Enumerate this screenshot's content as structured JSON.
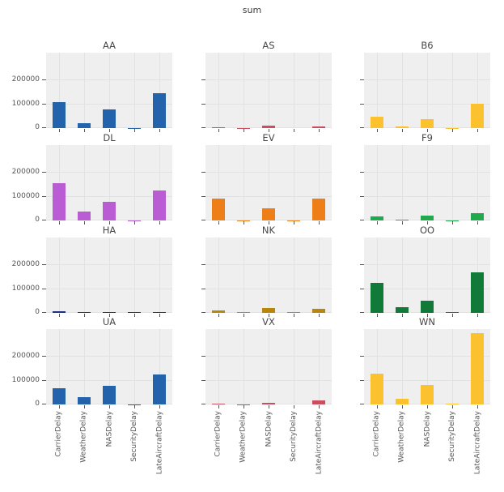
{
  "figure": {
    "title": "sum"
  },
  "chart_data": {
    "type": "bar",
    "title": "sum",
    "layout": {
      "rows": 4,
      "cols": 3,
      "grid": true,
      "legend": "none",
      "plot_bg": "#efefef",
      "grid_color": "#e2e2e2",
      "tick_color": "#555555",
      "text_color": "#474747"
    },
    "categories": [
      "CarrierDelay",
      "WeatherDelay",
      "NASDelay",
      "SecurityDelay",
      "LateAircraftDelay"
    ],
    "yticks": [
      0,
      100000,
      200000
    ],
    "ylim": [
      0,
      310000
    ],
    "facets": [
      {
        "title": "AA",
        "color": "#2263ab",
        "values": [
          108000,
          20000,
          78000,
          1000,
          142000
        ]
      },
      {
        "title": "AS",
        "color": "#cc4d5e",
        "values": [
          3000,
          500,
          8500,
          200,
          7500
        ]
      },
      {
        "title": "B6",
        "color": "#fcc12f",
        "values": [
          47000,
          6000,
          38000,
          500,
          100000
        ]
      },
      {
        "title": "DL",
        "color": "#ba5cd3",
        "values": [
          152000,
          36000,
          76000,
          1200,
          124000
        ]
      },
      {
        "title": "EV",
        "color": "#ee7f18",
        "values": [
          90000,
          1500,
          50000,
          300,
          90000
        ]
      },
      {
        "title": "F9",
        "color": "#21a94e",
        "values": [
          17000,
          3000,
          20000,
          400,
          30000
        ]
      },
      {
        "title": "HA",
        "color": "#1e2f87",
        "values": [
          4000,
          500,
          1500,
          100,
          2000
        ]
      },
      {
        "title": "NK",
        "color": "#b8860b",
        "values": [
          8000,
          600,
          17000,
          200,
          14000
        ]
      },
      {
        "title": "OO",
        "color": "#127a39",
        "values": [
          121000,
          21000,
          49000,
          600,
          165000
        ]
      },
      {
        "title": "UA",
        "color": "#2263ab",
        "values": [
          66000,
          30000,
          78000,
          1500,
          122000
        ]
      },
      {
        "title": "VX",
        "color": "#cc4d5e",
        "values": [
          5000,
          300,
          8000,
          150,
          18000
        ]
      },
      {
        "title": "WN",
        "color": "#fcc12f",
        "values": [
          127000,
          25000,
          80000,
          2000,
          295000
        ]
      }
    ]
  }
}
